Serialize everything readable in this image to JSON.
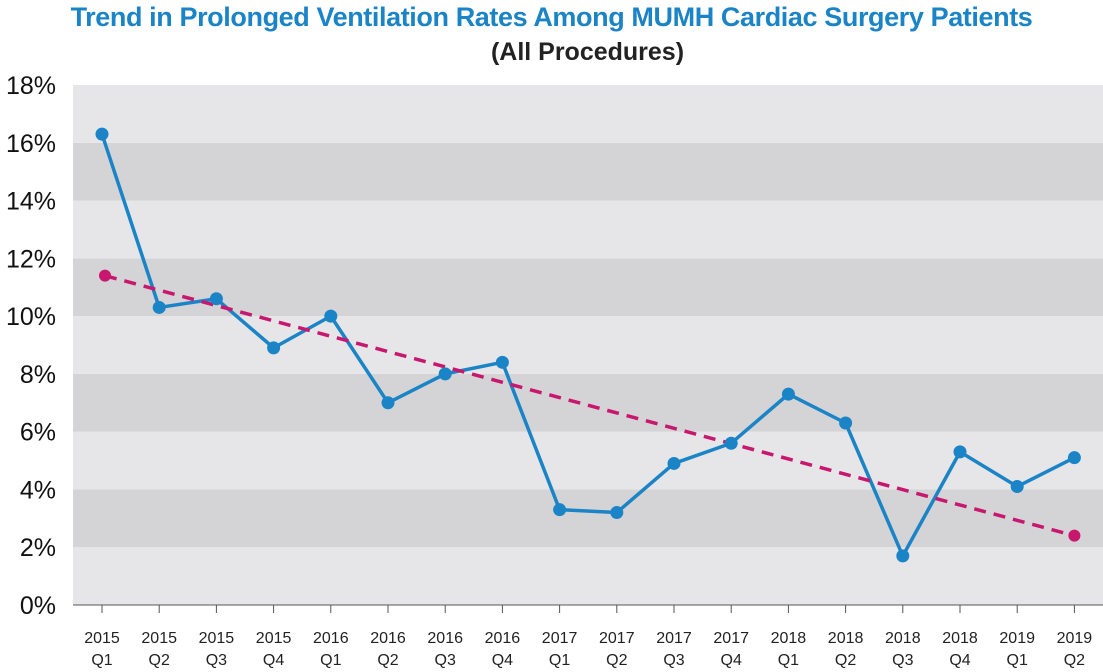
{
  "chart_data": {
    "type": "line",
    "title": "Trend in Prolonged Ventilation Rates Among MUMH Cardiac Surgery Patients",
    "subtitle": "(All Procedures)",
    "categories": [
      [
        "2015",
        "Q1"
      ],
      [
        "2015",
        "Q2"
      ],
      [
        "2015",
        "Q3"
      ],
      [
        "2015",
        "Q4"
      ],
      [
        "2016",
        "Q1"
      ],
      [
        "2016",
        "Q2"
      ],
      [
        "2016",
        "Q3"
      ],
      [
        "2016",
        "Q4"
      ],
      [
        "2017",
        "Q1"
      ],
      [
        "2017",
        "Q2"
      ],
      [
        "2017",
        "Q3"
      ],
      [
        "2017",
        "Q4"
      ],
      [
        "2018",
        "Q1"
      ],
      [
        "2018",
        "Q2"
      ],
      [
        "2018",
        "Q3"
      ],
      [
        "2018",
        "Q4"
      ],
      [
        "2019",
        "Q1"
      ],
      [
        "2019",
        "Q2"
      ]
    ],
    "series": [
      {
        "values": [
          16.3,
          10.3,
          10.6,
          8.9,
          10.0,
          7.0,
          8.0,
          8.4,
          3.3,
          3.2,
          4.9,
          5.6,
          7.3,
          6.3,
          1.7,
          5.3,
          4.1,
          5.1
        ],
        "color": "#1b84c6"
      }
    ],
    "trendline": {
      "start_value": 11.4,
      "end_value": 2.4,
      "color": "#c8176e",
      "style": "dashed"
    },
    "yticks": [
      "0%",
      "2%",
      "4%",
      "6%",
      "8%",
      "10%",
      "12%",
      "14%",
      "16%",
      "18%"
    ],
    "ylim": [
      0,
      18
    ],
    "grid": "alternating horizontal bands",
    "band_colors": [
      "#e6e6e8",
      "#d4d4d6"
    ]
  }
}
